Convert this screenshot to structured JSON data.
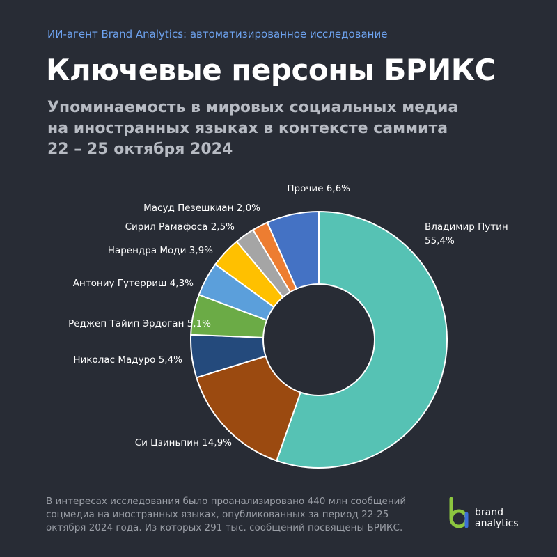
{
  "header": {
    "kicker": "ИИ-агент Brand Analytics: автоматизированное исследование",
    "title": "Ключевые персоны БРИКС",
    "subtitle_lines": [
      "Упоминаемость в мировых социальных медиа",
      "на иностранных языках в контексте саммита",
      "22 – 25 октября 2024"
    ]
  },
  "chart_data": {
    "type": "pie",
    "variant": "donut",
    "slices": [
      {
        "label": "Владимир Путин",
        "value": 55.4,
        "display": "55,4%",
        "color": "#56c2b4"
      },
      {
        "label": "Си Цзиньпин",
        "value": 14.9,
        "display": "14,9%",
        "color": "#9b4a10"
      },
      {
        "label": "Николас Мадуро",
        "value": 5.4,
        "display": "5,4%",
        "color": "#244a7c"
      },
      {
        "label": "Реджеп Тайип Эрдоган",
        "value": 5.1,
        "display": "5,1%",
        "color": "#6bab46"
      },
      {
        "label": "Антониу Гутерриш",
        "value": 4.3,
        "display": "4,3%",
        "color": "#5b9fdb"
      },
      {
        "label": "Нарендра Моди",
        "value": 3.9,
        "display": "3,9%",
        "color": "#ffc000"
      },
      {
        "label": "Сирил Рамафоса",
        "value": 2.5,
        "display": "2,5%",
        "color": "#a5a5a5"
      },
      {
        "label": "Масуд Пезешкиан",
        "value": 2.0,
        "display": "2,0%",
        "color": "#ed7d31"
      },
      {
        "label": "Прочие",
        "value": 6.6,
        "display": "6,6%",
        "color": "#4472c4"
      }
    ],
    "direction": "clockwise from top"
  },
  "footnote_lines": [
    "В интересах исследования было проанализировано 440 млн сообщений",
    "соцмедиа на иностранных языках, опубликованных за период 22-25",
    "октября 2024 года. Из которых 291 тыс. сообщений посвящены БРИКС."
  ],
  "brand": {
    "line1": "brand",
    "line2": "analytics",
    "colors": {
      "green": "#8cc63f",
      "blue": "#3d6fd6"
    }
  }
}
